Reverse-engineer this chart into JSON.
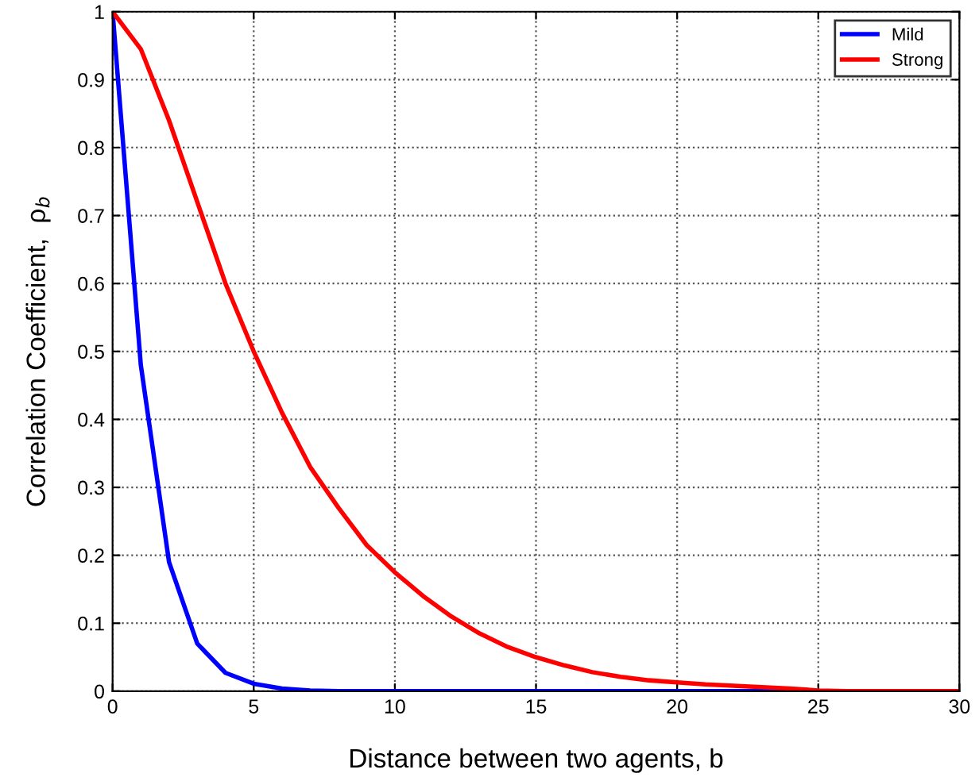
{
  "chart_data": {
    "type": "line",
    "xlabel": "Distance between two agents, b",
    "ylabel": "Correlation Coefficient,  ρ$_{b}$",
    "x": [
      0,
      1,
      2,
      3,
      4,
      5,
      6,
      7,
      8,
      9,
      10,
      11,
      12,
      13,
      14,
      15,
      16,
      17,
      18,
      19,
      20,
      21,
      22,
      23,
      24,
      25,
      26,
      27,
      28,
      29,
      30
    ],
    "series": [
      {
        "name": "Mild",
        "color": "#0000ff",
        "values": [
          1,
          0.48,
          0.19,
          0.07,
          0.027,
          0.011,
          0.004,
          0.001,
          0,
          0,
          0,
          0,
          0,
          0,
          0,
          0,
          0,
          0,
          0,
          0,
          0,
          0,
          0,
          0,
          0,
          null,
          null,
          null,
          null,
          null,
          null
        ]
      },
      {
        "name": "Strong",
        "color": "#ff0000",
        "values": [
          1,
          0.945,
          0.84,
          0.72,
          0.6,
          0.5,
          0.41,
          0.33,
          0.27,
          0.215,
          0.175,
          0.14,
          0.11,
          0.085,
          0.065,
          0.05,
          0.038,
          0.028,
          0.021,
          0.016,
          0.013,
          0.01,
          0.008,
          0.006,
          0.004,
          0.001,
          0,
          0,
          0,
          0,
          0
        ]
      }
    ],
    "xlim": [
      0,
      30
    ],
    "ylim": [
      0,
      1
    ],
    "xticks": [
      0,
      5,
      10,
      15,
      20,
      25,
      30
    ],
    "yticks": [
      0,
      0.1,
      0.2,
      0.3,
      0.4,
      0.5,
      0.6,
      0.7,
      0.8,
      0.9,
      1
    ],
    "grid": true,
    "legend": "top right",
    "line_style": "solid",
    "marker": "none"
  }
}
